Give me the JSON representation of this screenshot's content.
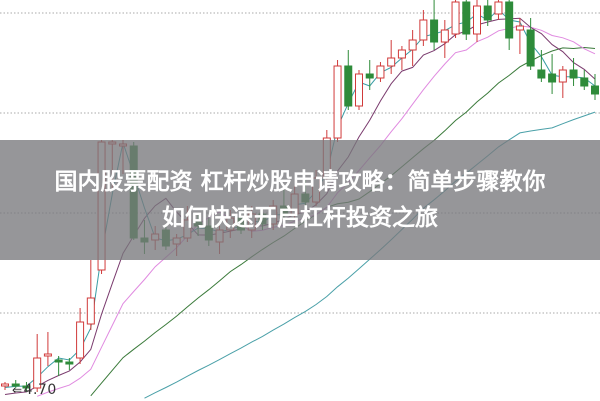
{
  "banner": {
    "line1": "国内股票配资 杠杆炒股申请攻略：简单步骤教你",
    "line2": "如何快速开启杠杆投资之旅"
  },
  "chart_data": {
    "type": "candlestick",
    "title": "",
    "xlabel": "",
    "ylabel": "",
    "ylim": [
      4.645,
      6.65
    ],
    "grid": "horizontal dotted",
    "annotation": "4.70",
    "colors": {
      "up": "#d03a3a",
      "down": "#2e8b3a",
      "ma5": "#3a9ea5",
      "ma10": "#7a3b6e",
      "ma20": "#e08ae0",
      "ma30": "#3a7a3a",
      "ma60": "#4aa0a8"
    },
    "candles": [
      [
        4.72,
        4.74,
        4.7,
        4.73
      ],
      [
        4.73,
        4.75,
        4.71,
        4.72
      ],
      [
        4.72,
        4.74,
        4.69,
        4.71
      ],
      [
        4.71,
        4.98,
        4.69,
        4.86
      ],
      [
        4.87,
        4.99,
        4.82,
        4.88
      ],
      [
        4.85,
        4.87,
        4.77,
        4.84
      ],
      [
        4.84,
        4.86,
        4.8,
        4.83
      ],
      [
        4.86,
        5.11,
        4.83,
        5.04
      ],
      [
        5.03,
        5.35,
        5.0,
        5.16
      ],
      [
        5.3,
        5.95,
        5.28,
        5.94
      ],
      [
        5.93,
        5.95,
        5.7,
        5.94
      ],
      [
        5.92,
        5.95,
        5.78,
        5.93
      ],
      [
        5.92,
        5.94,
        5.45,
        5.46
      ],
      [
        5.46,
        5.55,
        5.38,
        5.44
      ],
      [
        5.45,
        5.52,
        5.4,
        5.48
      ],
      [
        5.5,
        5.53,
        5.4,
        5.42
      ],
      [
        5.43,
        5.48,
        5.37,
        5.46
      ],
      [
        5.46,
        5.62,
        5.44,
        5.55
      ],
      [
        5.54,
        5.58,
        5.47,
        5.52
      ],
      [
        5.52,
        5.56,
        5.42,
        5.45
      ],
      [
        5.44,
        5.52,
        5.38,
        5.5
      ],
      [
        5.5,
        5.6,
        5.46,
        5.56
      ],
      [
        5.56,
        5.58,
        5.48,
        5.5
      ],
      [
        5.5,
        5.62,
        5.46,
        5.58
      ],
      [
        5.58,
        5.6,
        5.5,
        5.53
      ],
      [
        5.53,
        5.65,
        5.5,
        5.62
      ],
      [
        5.62,
        5.7,
        5.55,
        5.58
      ],
      [
        5.58,
        5.72,
        5.56,
        5.68
      ],
      [
        5.68,
        5.75,
        5.6,
        5.64
      ],
      [
        5.64,
        5.8,
        5.62,
        5.76
      ],
      [
        5.76,
        6.0,
        5.7,
        5.96
      ],
      [
        5.96,
        6.35,
        5.94,
        6.32
      ],
      [
        6.32,
        6.4,
        6.1,
        6.12
      ],
      [
        6.12,
        6.3,
        6.1,
        6.28
      ],
      [
        6.28,
        6.35,
        6.2,
        6.26
      ],
      [
        6.26,
        6.34,
        6.24,
        6.32
      ],
      [
        6.32,
        6.45,
        6.28,
        6.36
      ],
      [
        6.36,
        6.42,
        6.3,
        6.4
      ],
      [
        6.4,
        6.5,
        6.32,
        6.45
      ],
      [
        6.45,
        6.6,
        6.42,
        6.55
      ],
      [
        6.55,
        6.66,
        6.4,
        6.44
      ],
      [
        6.44,
        6.55,
        6.36,
        6.5
      ],
      [
        6.48,
        6.66,
        6.46,
        6.64
      ],
      [
        6.64,
        6.66,
        6.45,
        6.48
      ],
      [
        6.48,
        6.66,
        6.44,
        6.62
      ],
      [
        6.62,
        6.66,
        6.52,
        6.55
      ],
      [
        6.58,
        6.66,
        6.55,
        6.64
      ],
      [
        6.64,
        6.66,
        6.4,
        6.46
      ],
      [
        6.5,
        6.56,
        6.38,
        6.52
      ],
      [
        6.5,
        6.56,
        6.3,
        6.32
      ],
      [
        6.3,
        6.4,
        6.24,
        6.26
      ],
      [
        6.28,
        6.38,
        6.18,
        6.24
      ],
      [
        6.24,
        6.32,
        6.16,
        6.3
      ],
      [
        6.3,
        6.36,
        6.22,
        6.26
      ],
      [
        6.26,
        6.3,
        6.2,
        6.22
      ],
      [
        6.22,
        6.28,
        6.15,
        6.18
      ]
    ]
  }
}
